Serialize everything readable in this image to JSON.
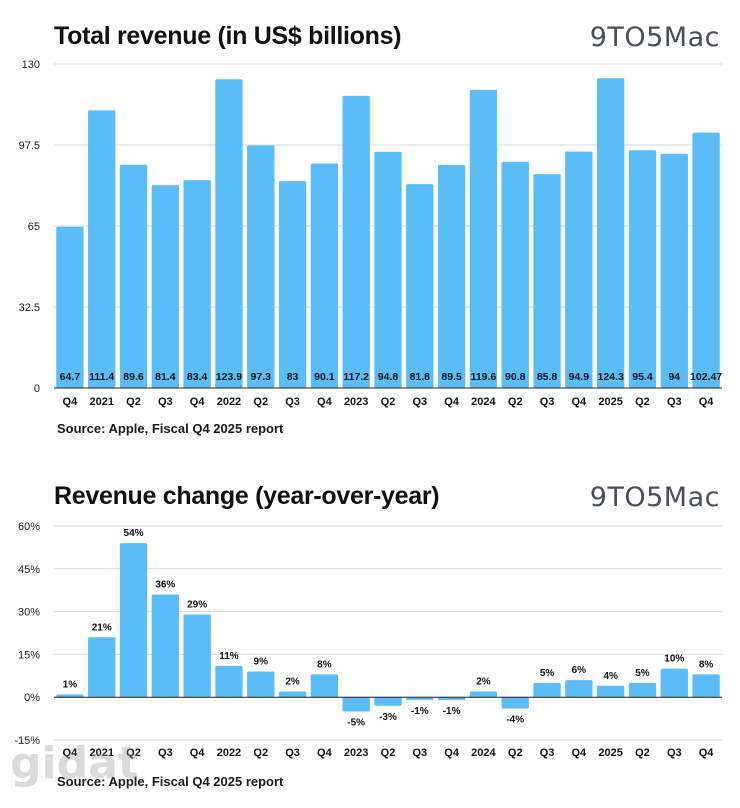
{
  "colors": {
    "bar": "#5bbdf7",
    "grid": "#d9d9d9",
    "axis": "#222222",
    "logo": "#4a4f55"
  },
  "logo": {
    "text": "9TO5Mac"
  },
  "watermark": {
    "text": "gidat"
  },
  "chart_data": [
    {
      "type": "bar",
      "title": "Total revenue (in US$ billions)",
      "source": "Source: Apple, Fiscal Q4 2025 report",
      "categories": [
        "Q4",
        "2021",
        "Q2",
        "Q3",
        "Q4",
        "2022",
        "Q2",
        "Q3",
        "Q4",
        "2023",
        "Q2",
        "Q3",
        "Q4",
        "2024",
        "Q2",
        "Q3",
        "Q4",
        "2025",
        "Q2",
        "Q3",
        "Q4"
      ],
      "values": [
        64.7,
        111.4,
        89.6,
        81.4,
        83.4,
        123.9,
        97.3,
        83,
        90.1,
        117.2,
        94.8,
        81.8,
        89.5,
        119.6,
        90.8,
        85.8,
        94.9,
        124.3,
        95.4,
        94,
        102.47
      ],
      "value_labels": [
        "64.7",
        "111.4",
        "89.6",
        "81.4",
        "83.4",
        "123.9",
        "97.3",
        "83",
        "90.1",
        "117.2",
        "94.8",
        "81.8",
        "89.5",
        "119.6",
        "90.8",
        "85.8",
        "94.9",
        "124.3",
        "95.4",
        "94",
        "102.47"
      ],
      "yticks": [
        0,
        32.5,
        65,
        97.5,
        130
      ],
      "ytick_labels": [
        "0",
        "32.5",
        "65",
        "97.5",
        "130"
      ],
      "ylim": [
        0,
        130
      ],
      "grid": true
    },
    {
      "type": "bar",
      "title": "Revenue change (year-over-year)",
      "source": "Source: Apple, Fiscal Q4 2025 report",
      "categories": [
        "Q4",
        "2021",
        "Q2",
        "Q3",
        "Q4",
        "2022",
        "Q2",
        "Q3",
        "Q4",
        "2023",
        "Q2",
        "Q3",
        "Q4",
        "2024",
        "Q2",
        "Q3",
        "Q4",
        "2025",
        "Q2",
        "Q3",
        "Q4"
      ],
      "values": [
        1,
        21,
        54,
        36,
        29,
        11,
        9,
        2,
        8,
        -5,
        -3,
        -1,
        -1,
        2,
        -4,
        5,
        6,
        4,
        5,
        10,
        8
      ],
      "value_labels": [
        "1%",
        "21%",
        "54%",
        "36%",
        "29%",
        "11%",
        "9%",
        "2%",
        "8%",
        "-5%",
        "-3%",
        "-1%",
        "-1%",
        "2%",
        "-4%",
        "5%",
        "6%",
        "4%",
        "5%",
        "10%",
        "8%"
      ],
      "yticks": [
        -15,
        0,
        15,
        30,
        45,
        60
      ],
      "ytick_labels": [
        "-15%",
        "0%",
        "15%",
        "30%",
        "45%",
        "60%"
      ],
      "ylim": [
        -15,
        60
      ],
      "grid": true
    }
  ]
}
